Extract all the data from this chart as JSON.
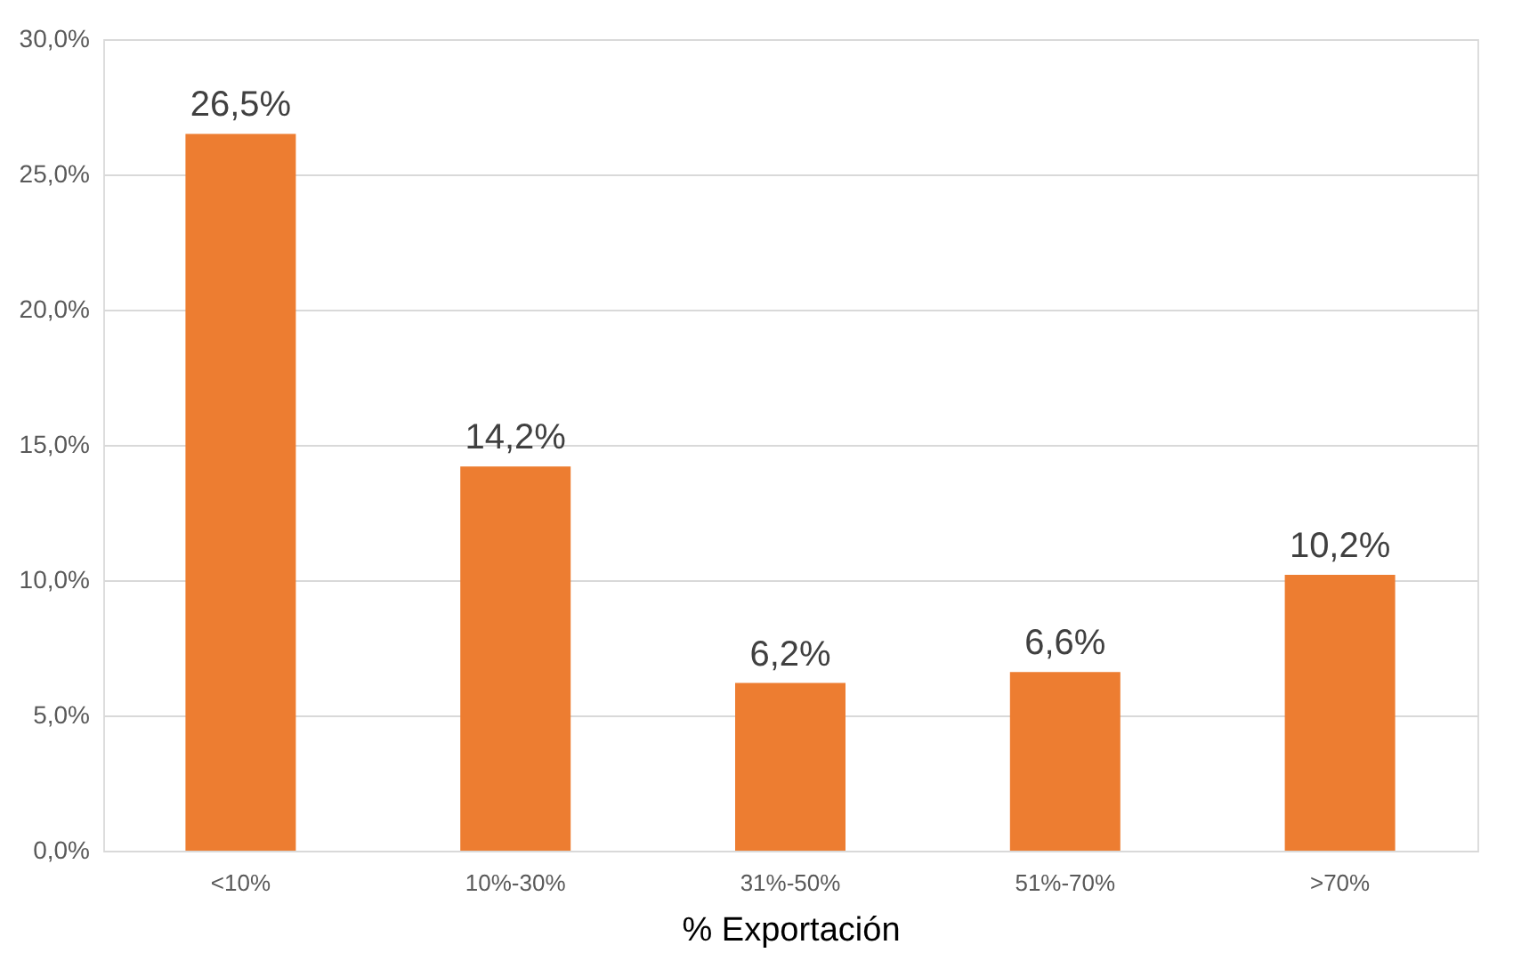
{
  "chart_data": {
    "type": "bar",
    "xlabel": "% Exportación",
    "categories": [
      "<10%",
      "10%-30%",
      "31%-50%",
      "51%-70%",
      ">70%"
    ],
    "values": [
      26.5,
      14.2,
      6.2,
      6.6,
      10.2
    ],
    "value_labels": [
      "26,5%",
      "14,2%",
      "6,2%",
      "6,6%",
      "10,2%"
    ],
    "color": "#ed7d31",
    "ylim": [
      0,
      30
    ],
    "yticks": [
      {
        "value": 0,
        "label": "0,0%"
      },
      {
        "value": 5,
        "label": "5,0%"
      },
      {
        "value": 10,
        "label": "10,0%"
      },
      {
        "value": 15,
        "label": "15,0%"
      },
      {
        "value": 20,
        "label": "20,0%"
      },
      {
        "value": 25,
        "label": "25,0%"
      },
      {
        "value": 30,
        "label": "30,0%"
      }
    ],
    "grid": "y"
  }
}
